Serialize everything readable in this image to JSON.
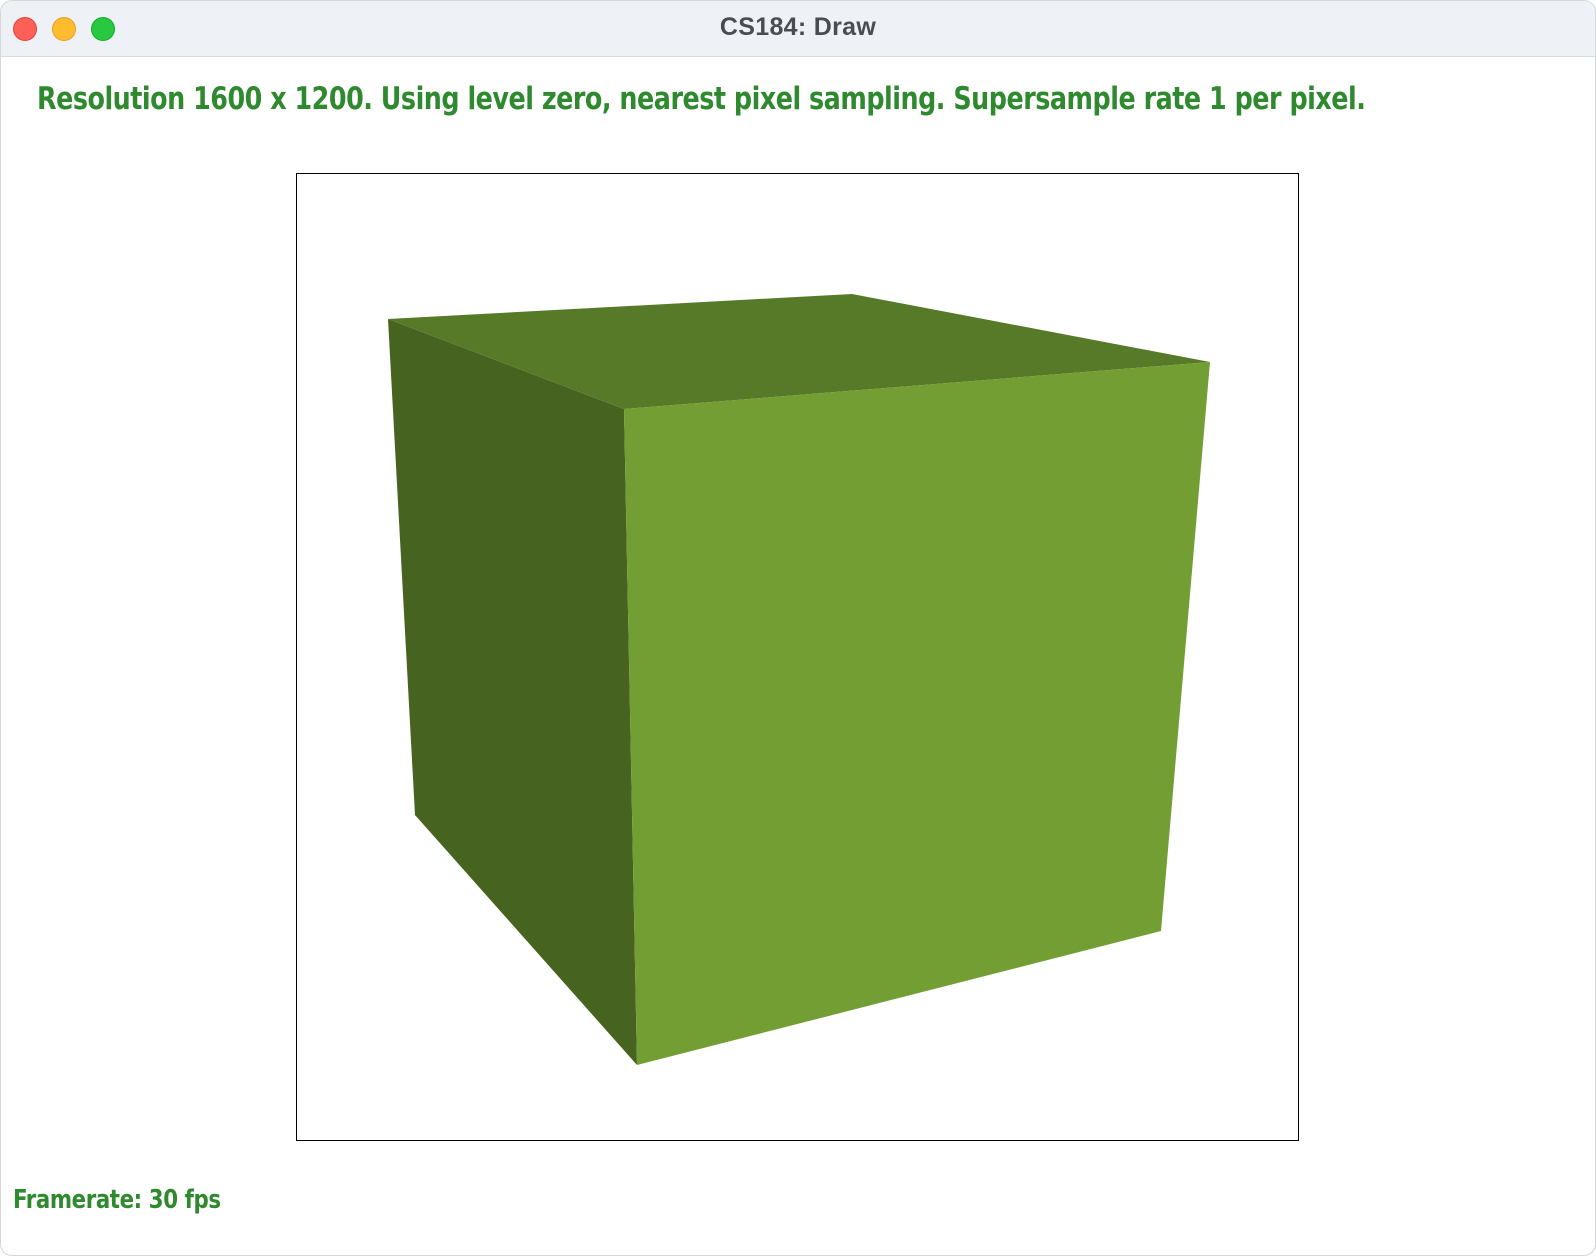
{
  "window": {
    "title": "CS184: Draw"
  },
  "status": {
    "text": "Resolution 1600 x 1200. Using level zero, nearest pixel sampling. Supersample rate 1 per pixel."
  },
  "footer": {
    "framerate": "Framerate: 30 fps"
  },
  "colors": {
    "text_green": "#2f8a2f",
    "cube_front": "#739e33",
    "cube_left": "#476320",
    "cube_top": "#577a28",
    "canvas_border": "#000000"
  },
  "icons": {
    "close": "close-traffic-light",
    "minimize": "minimize-traffic-light",
    "zoom": "zoom-traffic-light"
  }
}
